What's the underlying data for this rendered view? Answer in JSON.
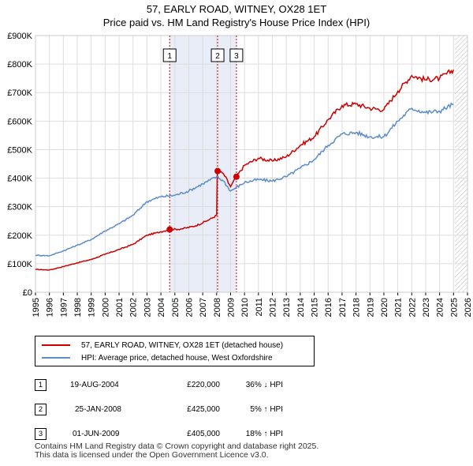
{
  "title_line1": "57, EARLY ROAD, WITNEY, OX28 1ET",
  "title_line2": "Price paid vs. HM Land Registry's House Price Index (HPI)",
  "chart_data": {
    "type": "line",
    "x_range": [
      1995,
      2026
    ],
    "ylim": [
      0,
      900000
    ],
    "y_ticks": [
      0,
      100000,
      200000,
      300000,
      400000,
      500000,
      600000,
      700000,
      800000,
      900000
    ],
    "y_tick_labels": [
      "£0",
      "£100K",
      "£200K",
      "£300K",
      "£400K",
      "£500K",
      "£600K",
      "£700K",
      "£800K",
      "£900K"
    ],
    "x_ticks": [
      1995,
      1996,
      1997,
      1998,
      1999,
      2000,
      2001,
      2002,
      2003,
      2004,
      2005,
      2006,
      2007,
      2008,
      2009,
      2010,
      2011,
      2012,
      2013,
      2014,
      2015,
      2016,
      2017,
      2018,
      2019,
      2020,
      2021,
      2022,
      2023,
      2024,
      2025,
      2026
    ],
    "grid": true,
    "shaded_periods": [
      [
        2004.63,
        2009.42
      ]
    ],
    "future_region_start": 2025.1,
    "series": [
      {
        "name": "57, EARLY ROAD, WITNEY, OX28 1ET (detached house)",
        "color": "#cc0000",
        "points": [
          [
            1995.0,
            80000
          ],
          [
            1996.0,
            78000
          ],
          [
            1997.0,
            90000
          ],
          [
            1998.0,
            103000
          ],
          [
            1999.0,
            115000
          ],
          [
            2000.0,
            133000
          ],
          [
            2001.0,
            150000
          ],
          [
            2002.0,
            168000
          ],
          [
            2003.0,
            200000
          ],
          [
            2004.0,
            212000
          ],
          [
            2004.63,
            220000
          ],
          [
            2005.5,
            222000
          ],
          [
            2006.5,
            233000
          ],
          [
            2007.5,
            255000
          ],
          [
            2008.0,
            270000
          ],
          [
            2008.05,
            425000
          ],
          [
            2008.5,
            415000
          ],
          [
            2009.0,
            370000
          ],
          [
            2009.42,
            405000
          ],
          [
            2010.0,
            445000
          ],
          [
            2011.0,
            470000
          ],
          [
            2012.0,
            460000
          ],
          [
            2013.0,
            475000
          ],
          [
            2014.0,
            515000
          ],
          [
            2015.0,
            545000
          ],
          [
            2016.0,
            605000
          ],
          [
            2017.0,
            655000
          ],
          [
            2018.0,
            660000
          ],
          [
            2019.0,
            645000
          ],
          [
            2020.0,
            640000
          ],
          [
            2021.0,
            705000
          ],
          [
            2022.0,
            760000
          ],
          [
            2023.0,
            745000
          ],
          [
            2024.0,
            750000
          ],
          [
            2025.0,
            780000
          ]
        ]
      },
      {
        "name": "HPI: Average price, detached house, West Oxfordshire",
        "color": "#5b8ccc",
        "points": [
          [
            1995.0,
            130000
          ],
          [
            1996.0,
            128000
          ],
          [
            1997.0,
            145000
          ],
          [
            1998.0,
            165000
          ],
          [
            1999.0,
            185000
          ],
          [
            2000.0,
            215000
          ],
          [
            2001.0,
            240000
          ],
          [
            2002.0,
            270000
          ],
          [
            2003.0,
            318000
          ],
          [
            2004.0,
            335000
          ],
          [
            2005.0,
            340000
          ],
          [
            2006.0,
            355000
          ],
          [
            2007.0,
            380000
          ],
          [
            2008.0,
            405000
          ],
          [
            2008.5,
            390000
          ],
          [
            2009.0,
            355000
          ],
          [
            2010.0,
            385000
          ],
          [
            2011.0,
            395000
          ],
          [
            2012.0,
            390000
          ],
          [
            2013.0,
            405000
          ],
          [
            2014.0,
            435000
          ],
          [
            2015.0,
            465000
          ],
          [
            2016.0,
            515000
          ],
          [
            2017.0,
            555000
          ],
          [
            2018.0,
            560000
          ],
          [
            2019.0,
            545000
          ],
          [
            2020.0,
            545000
          ],
          [
            2021.0,
            600000
          ],
          [
            2022.0,
            645000
          ],
          [
            2023.0,
            630000
          ],
          [
            2024.0,
            635000
          ],
          [
            2025.0,
            660000
          ]
        ]
      }
    ],
    "sales": [
      {
        "num": "1",
        "x": 2004.63,
        "y": 220000
      },
      {
        "num": "2",
        "x": 2008.07,
        "y": 425000
      },
      {
        "num": "3",
        "x": 2009.42,
        "y": 405000
      }
    ]
  },
  "legend": [
    {
      "label": "57, EARLY ROAD, WITNEY, OX28 1ET (detached house)",
      "color": "#cc0000"
    },
    {
      "label": "HPI: Average price, detached house, West Oxfordshire",
      "color": "#5b8ccc"
    }
  ],
  "transactions": [
    {
      "num": "1",
      "date": "19-AUG-2004",
      "price": "£220,000",
      "hpi": "36% ↓ HPI"
    },
    {
      "num": "2",
      "date": "25-JAN-2008",
      "price": "£425,000",
      "hpi": "5% ↑ HPI"
    },
    {
      "num": "3",
      "date": "01-JUN-2009",
      "price": "£405,000",
      "hpi": "18% ↑ HPI"
    }
  ],
  "footer_line1": "Contains HM Land Registry data © Crown copyright and database right 2025.",
  "footer_line2": "This data is licensed under the Open Government Licence v3.0."
}
